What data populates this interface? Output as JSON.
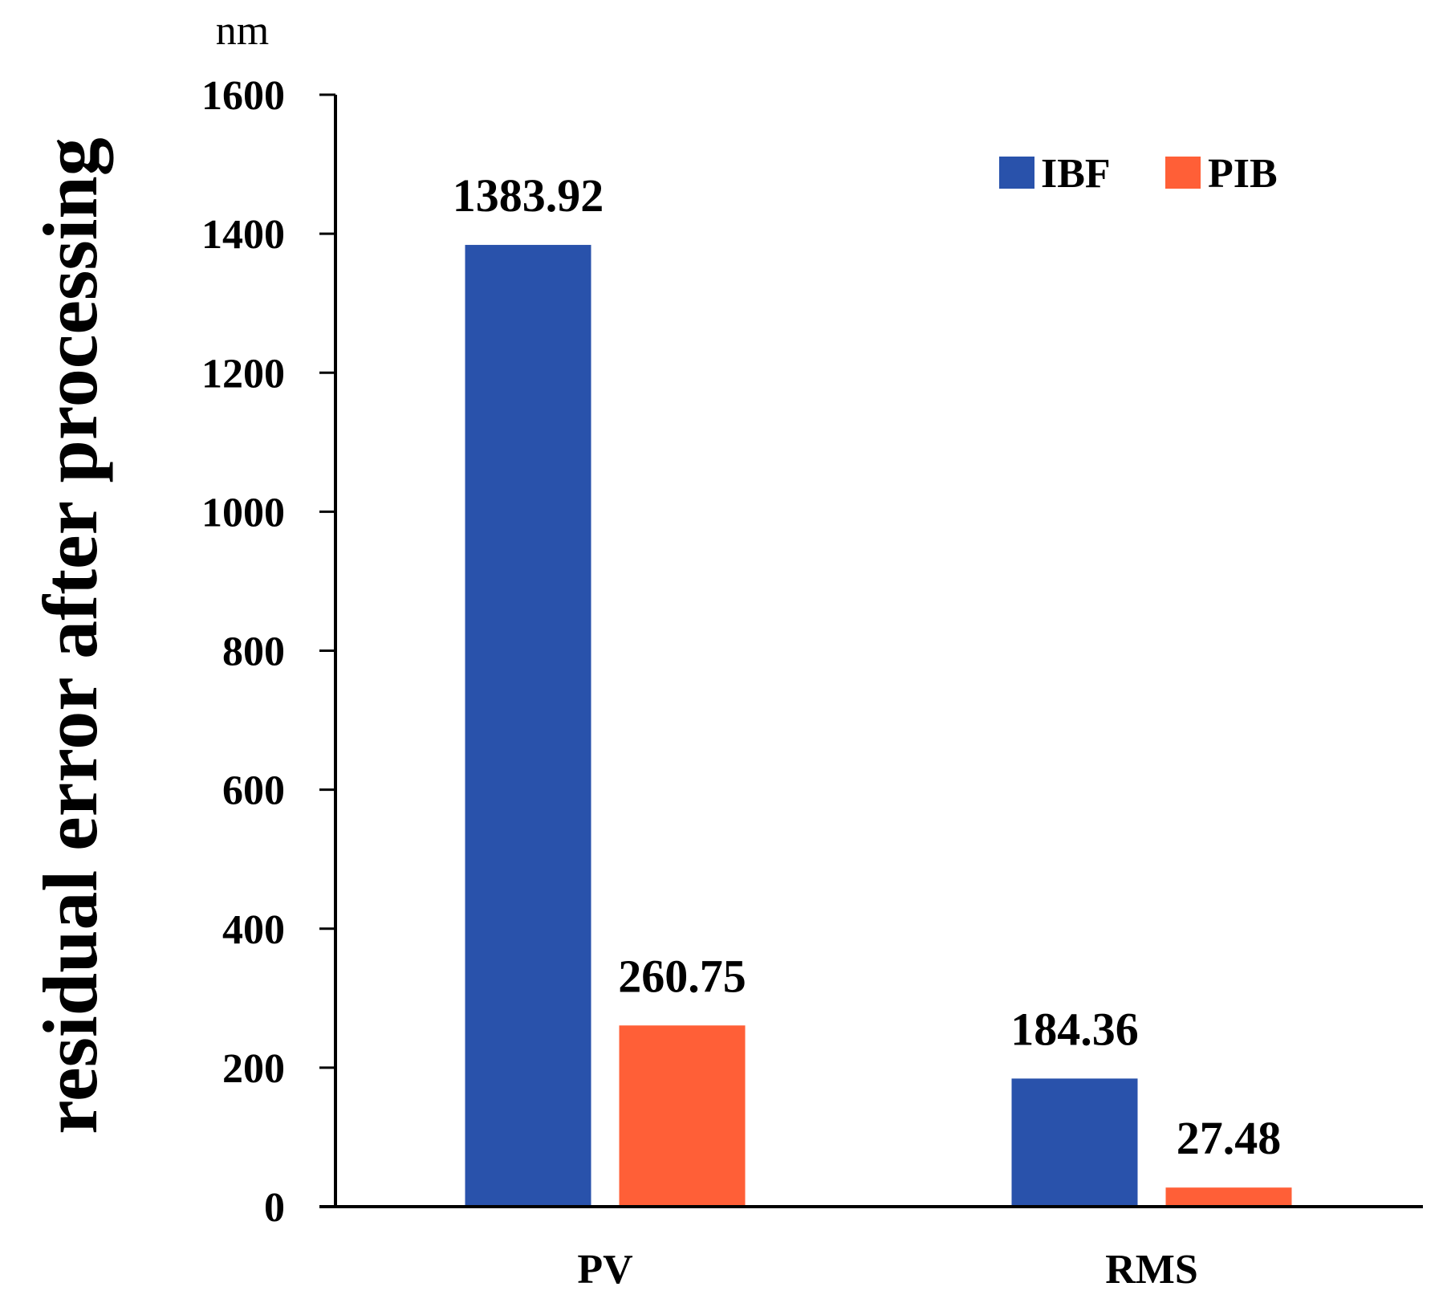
{
  "chart_data": {
    "type": "bar",
    "title": "",
    "unit_label": "nm",
    "ylabel": "residual error after processing",
    "xlabel": "",
    "categories": [
      "PV",
      "RMS"
    ],
    "series": [
      {
        "name": "IBF",
        "color": "#2952AB",
        "values": [
          1383.92,
          184.36
        ],
        "labels": [
          "1383.92",
          "184.36"
        ]
      },
      {
        "name": "PIB",
        "color": "#FF5F37",
        "values": [
          260.75,
          27.48
        ],
        "labels": [
          "260.75",
          "27.48"
        ]
      }
    ],
    "ylim": [
      0,
      1600
    ],
    "yticks": [
      0,
      200,
      400,
      600,
      800,
      1000,
      1200,
      1400,
      1600
    ],
    "grid": false,
    "legend_position": "top-right"
  }
}
